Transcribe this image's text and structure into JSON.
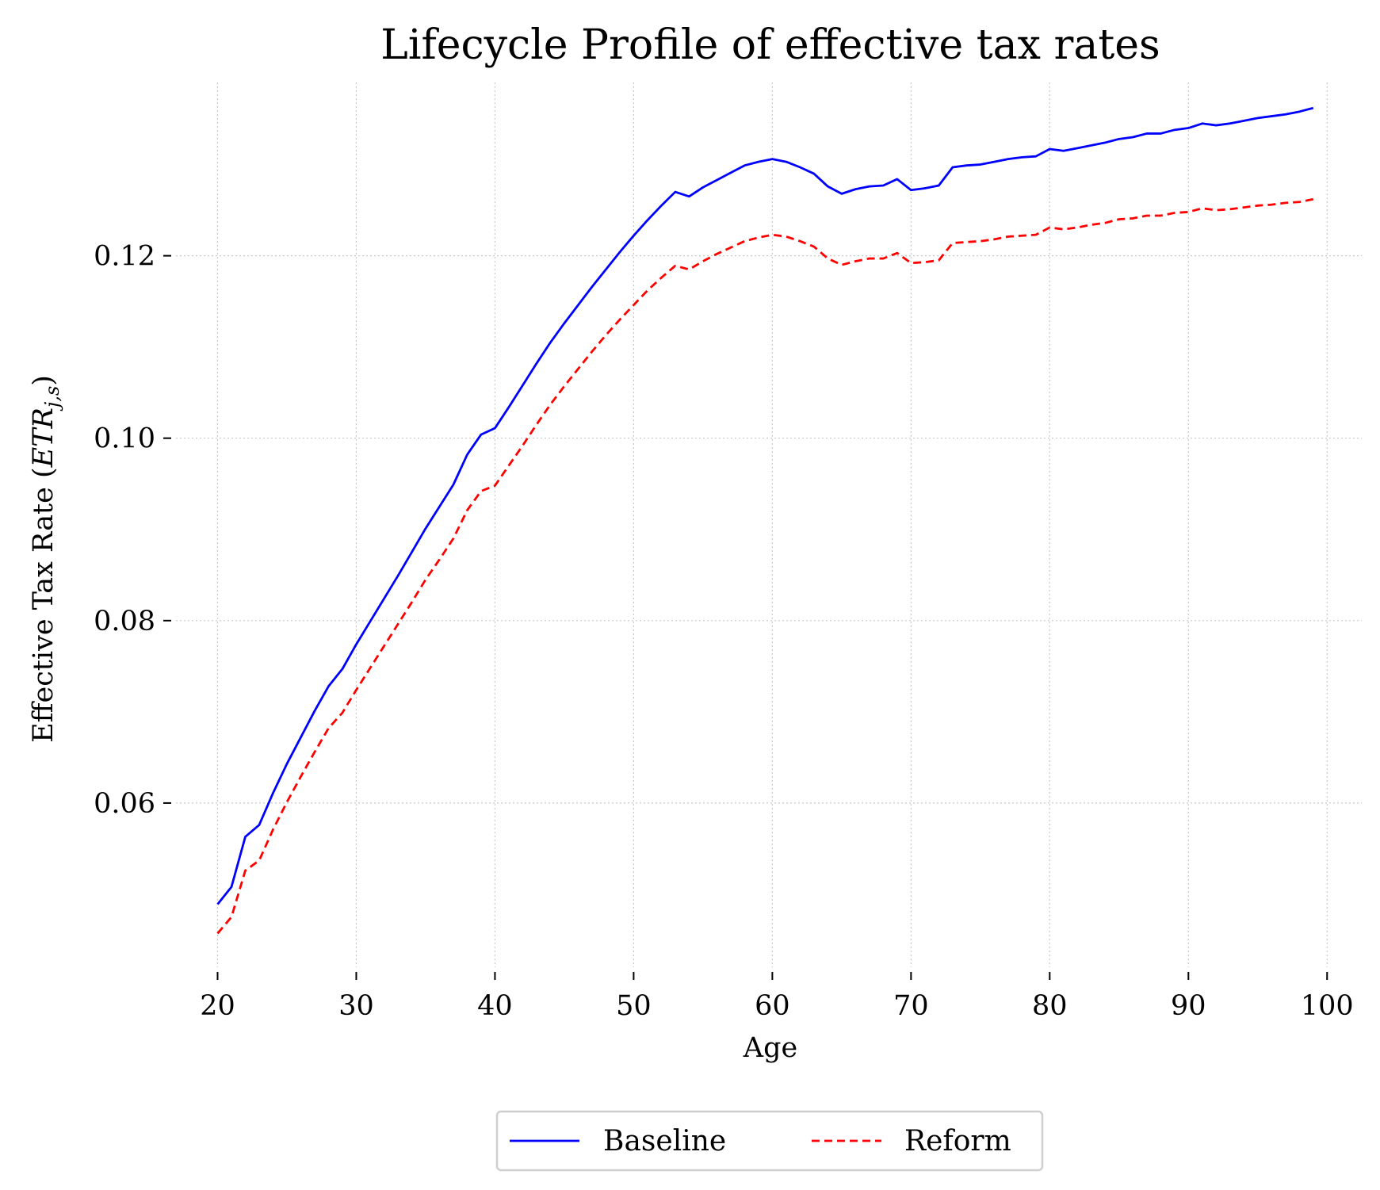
{
  "chart_data": {
    "type": "line",
    "title": "Lifecycle Profile of effective tax rates",
    "xlabel": "Age",
    "ylabel_main": "Effective Tax Rate (",
    "ylabel_math": "ETR",
    "ylabel_sub": "j,s",
    "ylabel_end": ")",
    "xlim": [
      17,
      102.5
    ],
    "ylim": [
      0.042,
      0.139
    ],
    "xticks": [
      20,
      30,
      40,
      50,
      60,
      70,
      80,
      90,
      100
    ],
    "yticks": [
      0.06,
      0.08,
      0.1,
      0.12
    ],
    "ytick_labels": [
      "0.06",
      "0.08",
      "0.10",
      "0.12"
    ],
    "grid": true,
    "legend_position": "bottom-center",
    "x": [
      20,
      21,
      22,
      23,
      24,
      25,
      26,
      27,
      28,
      29,
      30,
      31,
      32,
      33,
      34,
      35,
      36,
      37,
      38,
      39,
      40,
      41,
      42,
      43,
      44,
      45,
      46,
      47,
      48,
      49,
      50,
      51,
      52,
      53,
      54,
      55,
      56,
      57,
      58,
      59,
      60,
      61,
      62,
      63,
      64,
      65,
      66,
      67,
      68,
      69,
      70,
      71,
      72,
      73,
      74,
      75,
      76,
      77,
      78,
      79,
      80,
      81,
      82,
      83,
      84,
      85,
      86,
      87,
      88,
      89,
      90,
      91,
      92,
      93,
      94,
      95,
      96,
      97,
      98,
      99
    ],
    "series": [
      {
        "name": "Baseline",
        "color": "#0000ff",
        "style": "solid",
        "values": [
          0.0489,
          0.0508,
          0.0563,
          0.0576,
          0.0611,
          0.0643,
          0.0672,
          0.0701,
          0.0728,
          0.0747,
          0.0774,
          0.0799,
          0.0824,
          0.0849,
          0.0875,
          0.0901,
          0.0925,
          0.0949,
          0.0982,
          0.1004,
          0.1011,
          0.1034,
          0.1058,
          0.1082,
          0.1105,
          0.1126,
          0.1146,
          0.1166,
          0.1185,
          0.1204,
          0.1222,
          0.1239,
          0.1255,
          0.127,
          0.1265,
          0.1275,
          0.1283,
          0.1291,
          0.1299,
          0.1303,
          0.1306,
          0.1303,
          0.1297,
          0.129,
          0.1276,
          0.1268,
          0.1273,
          0.1276,
          0.1277,
          0.1284,
          0.1272,
          0.1274,
          0.1277,
          0.1297,
          0.1299,
          0.13,
          0.1303,
          0.1306,
          0.1308,
          0.1309,
          0.1317,
          0.1315,
          0.1318,
          0.1321,
          0.1324,
          0.1328,
          0.133,
          0.1334,
          0.1334,
          0.1338,
          0.134,
          0.1345,
          0.1343,
          0.1345,
          0.1348,
          0.1351,
          0.1353,
          0.1355,
          0.1358,
          0.1362
        ]
      },
      {
        "name": "Reform",
        "color": "#ff0000",
        "style": "dashed",
        "values": [
          0.0457,
          0.0475,
          0.0526,
          0.0537,
          0.0571,
          0.0601,
          0.0629,
          0.0656,
          0.0682,
          0.0699,
          0.0724,
          0.0748,
          0.0772,
          0.0796,
          0.082,
          0.0845,
          0.0867,
          0.089,
          0.0921,
          0.0942,
          0.0948,
          0.097,
          0.0992,
          0.1015,
          0.1037,
          0.1057,
          0.1076,
          0.1095,
          0.1113,
          0.113,
          0.1146,
          0.1162,
          0.1176,
          0.1189,
          0.1185,
          0.1194,
          0.1202,
          0.1209,
          0.1216,
          0.122,
          0.1223,
          0.1221,
          0.1216,
          0.121,
          0.1197,
          0.119,
          0.1194,
          0.1197,
          0.1197,
          0.1203,
          0.1192,
          0.1193,
          0.1195,
          0.1214,
          0.1215,
          0.1216,
          0.1218,
          0.1221,
          0.1222,
          0.1223,
          0.1231,
          0.1229,
          0.1231,
          0.1234,
          0.1236,
          0.124,
          0.1241,
          0.1244,
          0.1244,
          0.1247,
          0.1248,
          0.1252,
          0.125,
          0.1251,
          0.1253,
          0.1255,
          0.1256,
          0.1258,
          0.1259,
          0.1262
        ]
      }
    ]
  }
}
